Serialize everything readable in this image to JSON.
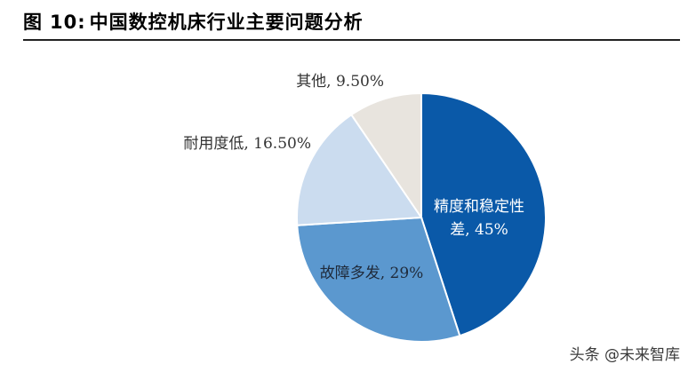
{
  "figure": {
    "label": "图",
    "number": "10:",
    "title": "中国数控机床行业主要问题分析"
  },
  "chart_data": {
    "type": "pie",
    "title": "中国数控机床行业主要问题分析",
    "slices": [
      {
        "name": "精度和稳定性差",
        "value": 45,
        "label_lines": [
          "精度和稳定性",
          "差, 45%"
        ],
        "color": "#0a59a8",
        "label_color": "#ffffff"
      },
      {
        "name": "故障多发",
        "value": 29,
        "label_lines": [
          "故障多发, 29%"
        ],
        "color": "#5b98cf",
        "label_color": "#1f2a3a"
      },
      {
        "name": "耐用度低",
        "value": 16.5,
        "label_lines": [
          "耐用度低, 16.50%"
        ],
        "color": "#cbdcef",
        "label_color": "#333333"
      },
      {
        "name": "其他",
        "value": 9.5,
        "label_lines": [
          "其他, 9.50%"
        ],
        "color": "#e8e4de",
        "label_color": "#333333"
      }
    ],
    "start": "12 o'clock",
    "direction": "clockwise",
    "legend": "none"
  },
  "watermark": "头条 @未来智库"
}
